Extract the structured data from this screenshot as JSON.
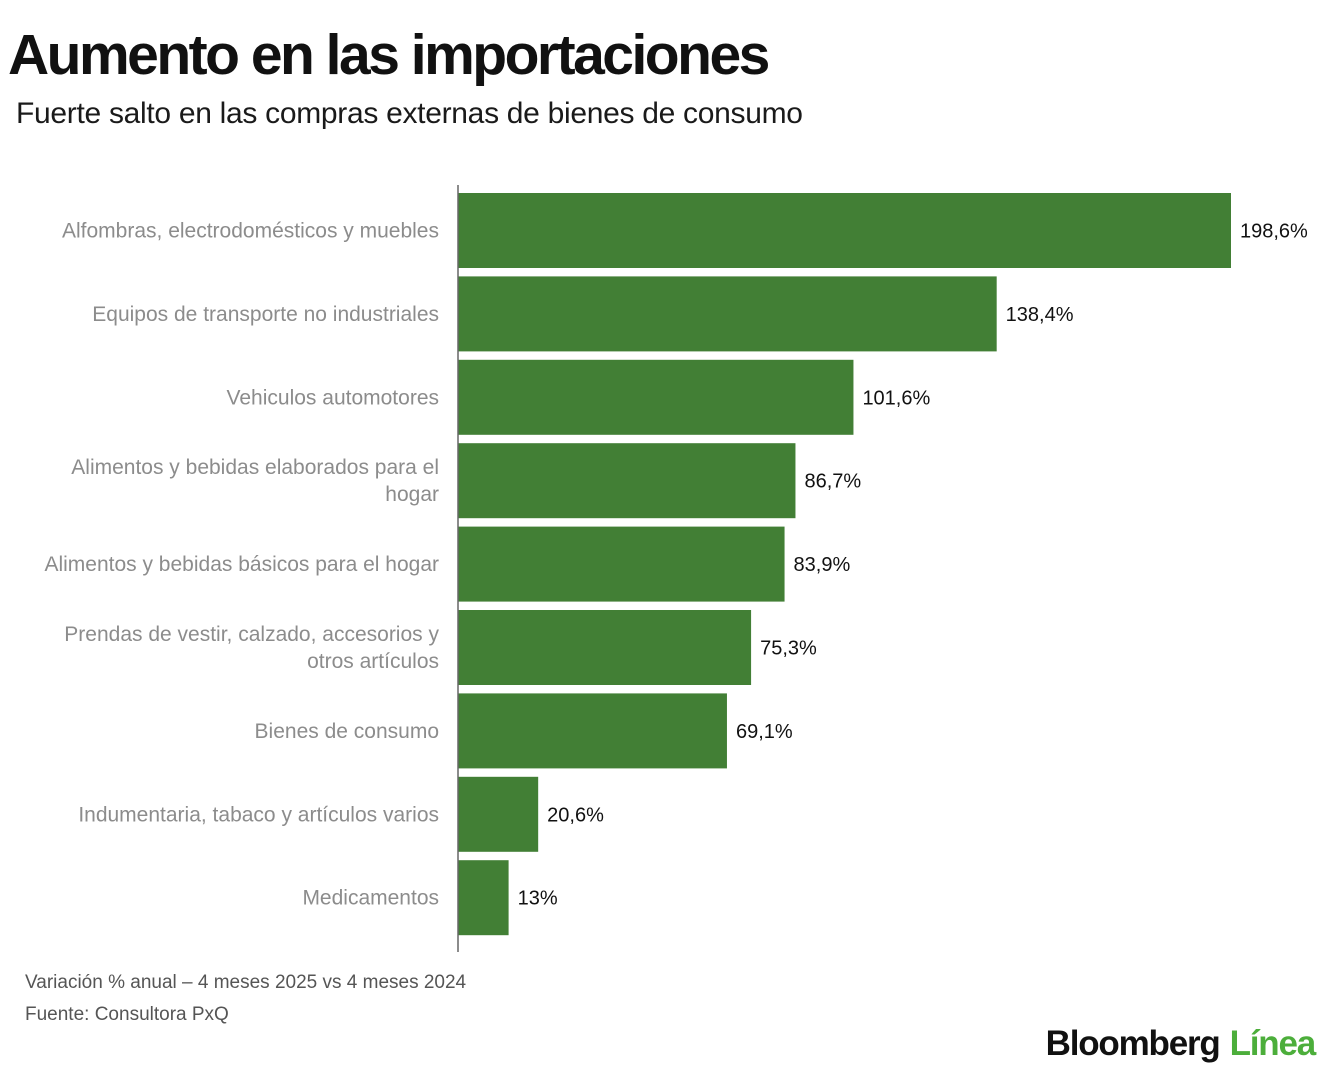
{
  "title": "Aumento en las importaciones",
  "subtitle": "Fuerte salto en las compras externas de bienes de consumo",
  "chart_data": {
    "type": "bar",
    "orientation": "horizontal",
    "categories": [
      "Alfombras, electrodomésticos y muebles",
      "Equipos de transporte no industriales",
      "Vehiculos automotores",
      "Alimentos y bebidas elaborados para el hogar",
      "Alimentos y bebidas básicos para el hogar",
      "Prendas de vestir, calzado, accesorios y otros artículos",
      "Bienes de consumo",
      "Indumentaria, tabaco y artículos varios",
      "Medicamentos"
    ],
    "category_lines": [
      [
        "Alfombras, electrodomésticos y muebles"
      ],
      [
        "Equipos de transporte no industriales"
      ],
      [
        "Vehiculos automotores"
      ],
      [
        "Alimentos y bebidas elaborados para el",
        "hogar"
      ],
      [
        "Alimentos y bebidas básicos para el hogar"
      ],
      [
        "Prendas de vestir, calzado, accesorios y",
        "otros artículos"
      ],
      [
        "Bienes de consumo"
      ],
      [
        "Indumentaria, tabaco y artículos varios"
      ],
      [
        "Medicamentos"
      ]
    ],
    "values": [
      198.6,
      138.4,
      101.6,
      86.7,
      83.9,
      75.3,
      69.1,
      20.6,
      13
    ],
    "value_labels": [
      "198,6%",
      "138,4%",
      "101,6%",
      "86,7%",
      "83,9%",
      "75,3%",
      "69,1%",
      "20,6%",
      "13%"
    ],
    "xlim": [
      0,
      198.6
    ],
    "bar_color": "#427f35",
    "grid": false,
    "legend": "none"
  },
  "footer": {
    "note": "Variación % anual – 4 meses 2025 vs 4 meses 2024",
    "source": "Fuente: Consultora PxQ"
  },
  "logo": {
    "brand": "Bloomberg",
    "product": "Línea",
    "brand_color": "#111111",
    "product_color": "#4cae3b"
  }
}
